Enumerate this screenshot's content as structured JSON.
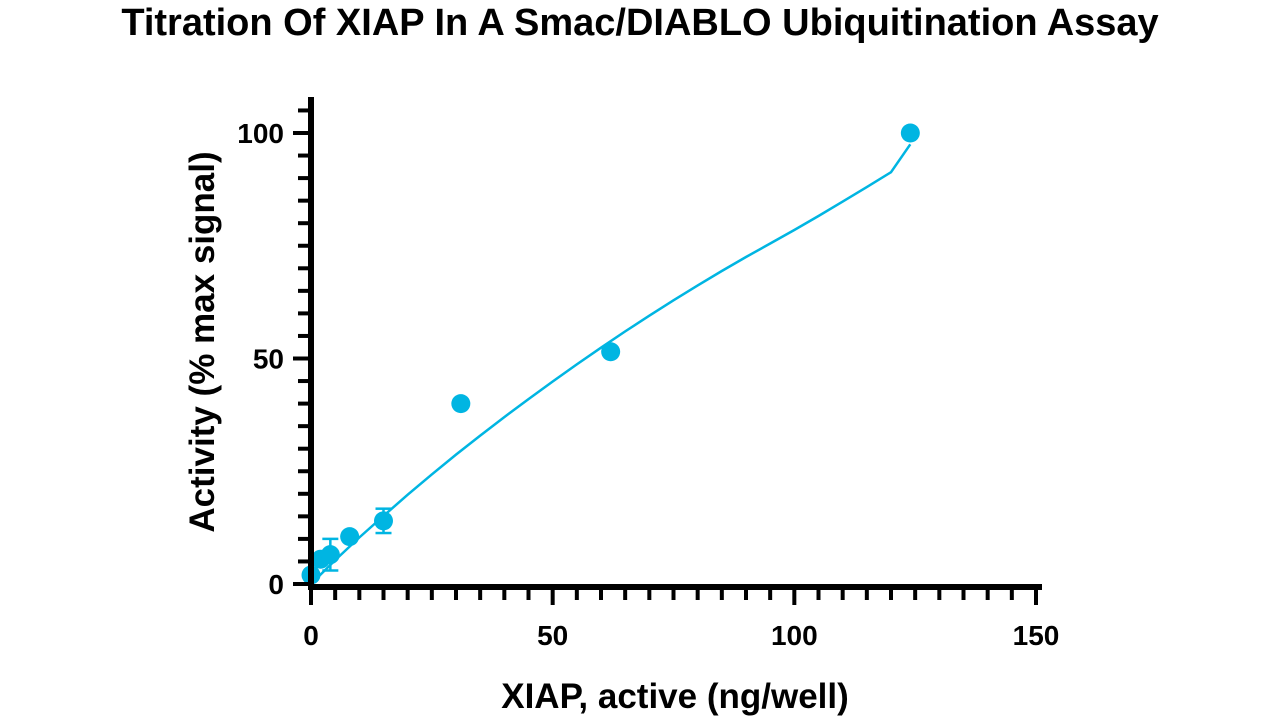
{
  "chart_data": {
    "type": "scatter",
    "title": "Titration Of XIAP In A Smac/DIABLO Ubiquitination Assay",
    "xlabel": "XIAP, active (ng/well)",
    "ylabel": "Activity (% max signal)",
    "xlim": [
      0,
      150
    ],
    "ylim": [
      0,
      100
    ],
    "x_ticks": [
      0,
      50,
      100,
      150
    ],
    "y_ticks": [
      0,
      50,
      100
    ],
    "x_tick_labels": [
      "0",
      "50",
      "100",
      "150"
    ],
    "y_tick_labels": [
      "0",
      "50",
      "100"
    ],
    "color": "#00b5e2",
    "points": [
      {
        "x": 0,
        "y": 2,
        "err": 0
      },
      {
        "x": 2,
        "y": 5.5,
        "err": 0
      },
      {
        "x": 4,
        "y": 6.5,
        "err": 3.5
      },
      {
        "x": 8,
        "y": 10.5,
        "err": 0
      },
      {
        "x": 15,
        "y": 14,
        "err": 2.7
      },
      {
        "x": 31,
        "y": 40,
        "err": 0
      },
      {
        "x": 62,
        "y": 51.5,
        "err": 0
      },
      {
        "x": 124,
        "y": 100,
        "err": 0
      }
    ],
    "fit_curve": {
      "type": "fitted-line",
      "x": [
        0,
        5,
        10,
        15,
        20,
        25,
        30,
        35,
        40,
        45,
        50,
        55,
        60,
        65,
        70,
        75,
        80,
        85,
        90,
        95,
        100,
        105,
        110,
        115,
        120,
        124
      ],
      "y": [
        0,
        5.3,
        10.3,
        15.1,
        19.8,
        24.3,
        28.7,
        32.9,
        37.0,
        41.0,
        44.9,
        48.7,
        52.4,
        56.0,
        59.5,
        62.9,
        66.2,
        69.4,
        72.5,
        75.5,
        78.5,
        81.6,
        84.8,
        88.0,
        91.3,
        97.5
      ]
    }
  }
}
